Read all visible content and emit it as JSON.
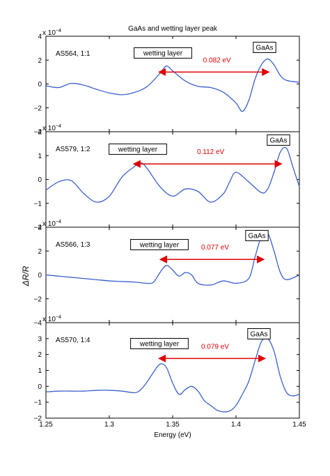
{
  "chart_data": {
    "type": "line",
    "title": "GaAs and wetting layer peak",
    "xlabel": "Energy (eV)",
    "ylabel": "ΔR/R",
    "xlim": [
      1.25,
      1.45
    ],
    "xticks": [
      1.25,
      1.3,
      1.35,
      1.4,
      1.45
    ],
    "xtick_labels": [
      "1.25",
      "1.3",
      "1.35",
      "1.4",
      "1.45"
    ],
    "colors": {
      "line": "#3a5fcd",
      "arrow": "#e00000",
      "axis": "#000000"
    },
    "panels": [
      {
        "sample": "AS564, 1:1",
        "exponent_label": "x 10",
        "exponent": "−4",
        "ylim": [
          -4,
          4
        ],
        "yticks": [
          -4,
          -2,
          0,
          2,
          4
        ],
        "ytick_labels": [
          "−4",
          "−2",
          "0",
          "2",
          "4"
        ],
        "x": [
          1.25,
          1.26,
          1.27,
          1.28,
          1.29,
          1.3,
          1.31,
          1.32,
          1.33,
          1.34,
          1.345,
          1.35,
          1.36,
          1.37,
          1.38,
          1.39,
          1.4,
          1.405,
          1.41,
          1.415,
          1.42,
          1.425,
          1.43,
          1.435,
          1.44,
          1.45
        ],
        "y": [
          -0.15,
          -0.3,
          0.05,
          -0.1,
          -0.45,
          -0.75,
          -0.9,
          -0.7,
          -0.2,
          0.9,
          1.5,
          1.1,
          0.25,
          -0.2,
          -0.3,
          -0.7,
          -1.6,
          -2.3,
          -1.4,
          0.4,
          1.6,
          2.1,
          1.6,
          0.7,
          0.3,
          0.15
        ],
        "peak_label": "wetting layer",
        "gaas_label": "GaAs",
        "arrow_label": "0.082 eV",
        "arrow_x": [
          1.344,
          1.426
        ],
        "arrow_y": 1.0
      },
      {
        "sample": "AS579, 1:2",
        "exponent_label": "x 10",
        "exponent": "−4",
        "ylim": [
          -2,
          2
        ],
        "yticks": [
          -2,
          -1,
          0,
          1,
          2
        ],
        "ytick_labels": [
          "−2",
          "−1",
          "0",
          "1",
          "2"
        ],
        "x": [
          1.25,
          1.26,
          1.27,
          1.28,
          1.29,
          1.3,
          1.31,
          1.32,
          1.325,
          1.33,
          1.34,
          1.35,
          1.36,
          1.37,
          1.38,
          1.39,
          1.395,
          1.4,
          1.41,
          1.42,
          1.425,
          1.43,
          1.435,
          1.44,
          1.445,
          1.45
        ],
        "y": [
          -0.45,
          -0.1,
          -0.05,
          -0.6,
          -0.95,
          -0.7,
          0.1,
          0.55,
          0.7,
          0.45,
          -0.3,
          -0.7,
          -0.4,
          -0.5,
          -0.95,
          -0.6,
          -0.1,
          0.3,
          -0.1,
          -0.55,
          -0.4,
          0.3,
          1.15,
          1.3,
          0.5,
          -0.3
        ],
        "peak_label": "wetting layer",
        "gaas_label": "GaAs",
        "arrow_label": "0.112 eV",
        "arrow_x": [
          1.324,
          1.436
        ],
        "arrow_y": 0.65
      },
      {
        "sample": "AS566, 1:3",
        "exponent_label": "x 10",
        "exponent": "−4",
        "ylim": [
          -4,
          4
        ],
        "yticks": [
          -4,
          -2,
          0,
          2,
          4
        ],
        "ytick_labels": [
          "−4",
          "−2",
          "0",
          "2",
          "4"
        ],
        "x": [
          1.25,
          1.26,
          1.27,
          1.28,
          1.29,
          1.3,
          1.31,
          1.32,
          1.33,
          1.335,
          1.34,
          1.345,
          1.35,
          1.355,
          1.36,
          1.365,
          1.37,
          1.38,
          1.39,
          1.4,
          1.41,
          1.415,
          1.42,
          1.425,
          1.43,
          1.435,
          1.44,
          1.45
        ],
        "y": [
          0.0,
          -0.1,
          -0.2,
          -0.3,
          -0.4,
          -0.5,
          -0.55,
          -0.6,
          -0.7,
          -0.6,
          0.2,
          0.8,
          0.4,
          -0.1,
          0.2,
          0.0,
          -0.7,
          -0.85,
          -0.5,
          -0.7,
          -0.3,
          1.5,
          3.2,
          3.5,
          2.0,
          0.2,
          -0.4,
          0.0
        ],
        "peak_label": "wetting layer",
        "gaas_label": "GaAs",
        "arrow_label": "0.077 eV",
        "arrow_x": [
          1.345,
          1.422
        ],
        "arrow_y": 1.3
      },
      {
        "sample": "AS570, 1:4",
        "exponent_label": "x 10",
        "exponent": "−4",
        "ylim": [
          -2,
          4
        ],
        "yticks": [
          -2,
          -1,
          0,
          1,
          2,
          3
        ],
        "ytick_labels": [
          "−2",
          "−1",
          "0",
          "1",
          "2",
          "3"
        ],
        "x": [
          1.25,
          1.26,
          1.27,
          1.28,
          1.29,
          1.3,
          1.31,
          1.32,
          1.325,
          1.33,
          1.335,
          1.34,
          1.345,
          1.35,
          1.355,
          1.36,
          1.365,
          1.37,
          1.375,
          1.38,
          1.385,
          1.39,
          1.395,
          1.4,
          1.405,
          1.41,
          1.415,
          1.42,
          1.425,
          1.43,
          1.435,
          1.44,
          1.445,
          1.45
        ],
        "y": [
          -0.35,
          -0.3,
          -0.3,
          -0.3,
          -0.25,
          -0.25,
          -0.3,
          -0.4,
          -0.2,
          0.3,
          0.9,
          1.4,
          1.2,
          0.2,
          -0.5,
          -0.2,
          0.0,
          -0.3,
          -0.9,
          -1.2,
          -1.5,
          -1.6,
          -1.55,
          -1.2,
          -0.5,
          0.3,
          1.6,
          2.8,
          3.0,
          2.2,
          0.6,
          -0.4,
          -0.6,
          -0.5
        ],
        "peak_label": "wetting layer",
        "gaas_label": "GaAs",
        "arrow_label": "0.079 eV",
        "arrow_x": [
          1.344,
          1.423
        ],
        "arrow_y": 1.75
      }
    ]
  }
}
